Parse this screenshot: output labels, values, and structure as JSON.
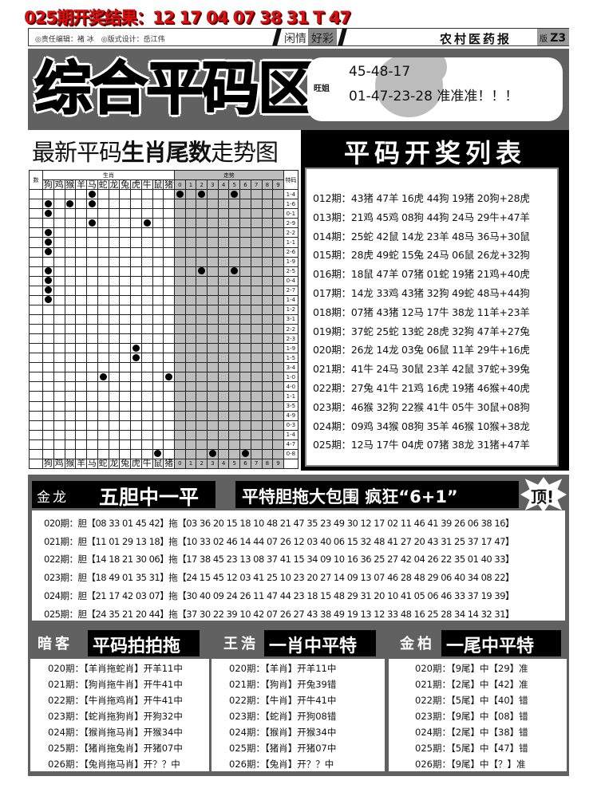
{
  "banner": "025期开奖结果：12 17 04 07 38 31 T 47",
  "header": {
    "credits": "◎责任编辑：褚 冰　◎版式设计：岳江伟",
    "column_a": "闲情",
    "column_b": "好彩",
    "paper": "农村医药报",
    "edition_label": "版",
    "edition": "Z3"
  },
  "top": {
    "title": "综合平码区",
    "tip_author": "旺姐",
    "tip_line1": "45-48-17",
    "tip_line2": "01-47-23-28 准准准！！！"
  },
  "trend": {
    "title_a": "最新平码",
    "title_b": "生肖尾数",
    "title_c": "走势图",
    "count_header": "数",
    "zodiac_header": "生肖",
    "tail_header": "走势",
    "special_header": "特码",
    "zodiacs": [
      "狗",
      "鸡",
      "猴",
      "羊",
      "马",
      "蛇",
      "龙",
      "兔",
      "虎",
      "牛",
      "鼠",
      "猪"
    ],
    "tails": [
      "0",
      "1",
      "2",
      "3",
      "4",
      "5",
      "6",
      "7",
      "8",
      "9"
    ],
    "rows": [
      {
        "z": [
          "马"
        ],
        "t": [
          "0",
          "2",
          "5"
        ],
        "s": "1-4"
      },
      {
        "z": [
          "狗",
          "猴",
          "马"
        ],
        "t": [],
        "s": "1-6"
      },
      {
        "z": [
          "狗"
        ],
        "t": [],
        "s": "0-1"
      },
      {
        "z": [
          "马",
          "牛"
        ],
        "t": [],
        "s": "2-9"
      },
      {
        "z": [
          "狗"
        ],
        "t": [],
        "s": "2-2"
      },
      {
        "z": [
          "狗"
        ],
        "t": [],
        "s": "1-1"
      },
      {
        "z": [
          "狗"
        ],
        "t": [],
        "s": "2-6"
      },
      {
        "z": [],
        "t": [],
        "s": "1-9"
      },
      {
        "z": [
          "狗"
        ],
        "t": [
          "2",
          "5"
        ],
        "s": "2-5"
      },
      {
        "z": [
          "狗"
        ],
        "t": [],
        "s": "0-4"
      },
      {
        "z": [
          "狗"
        ],
        "t": [],
        "s": "2-7"
      },
      {
        "z": [
          "狗"
        ],
        "t": [],
        "s": "1-4"
      },
      {
        "z": [],
        "t": [],
        "s": "1-2"
      },
      {
        "z": [],
        "t": [],
        "s": "3-1"
      },
      {
        "z": [],
        "t": [],
        "s": "2-2"
      },
      {
        "z": [],
        "t": [],
        "s": "2-3"
      },
      {
        "z": [
          "虎"
        ],
        "t": [],
        "s": "1-9"
      },
      {
        "z": [
          "虎"
        ],
        "t": [],
        "s": "1-5"
      },
      {
        "z": [],
        "t": [],
        "s": "3-4"
      },
      {
        "z": [
          "蛇",
          "猪"
        ],
        "t": [],
        "s": "1-0"
      },
      {
        "z": [],
        "t": [],
        "s": "4-0"
      },
      {
        "z": [],
        "t": [],
        "s": "1-1"
      },
      {
        "z": [],
        "t": [],
        "s": "3-5"
      },
      {
        "z": [],
        "t": [],
        "s": "4-9"
      },
      {
        "z": [],
        "t": [],
        "s": "0-3"
      },
      {
        "z": [],
        "t": [],
        "s": "1-4"
      },
      {
        "z": [],
        "t": [],
        "s": "4-7"
      },
      {
        "z": [
          "鼠"
        ],
        "t": [
          "3",
          "6"
        ],
        "s": "0-8"
      }
    ]
  },
  "draw_list": {
    "title": "平码开奖列表",
    "rows": [
      "012期：43猪 47羊 16虎 44狗 19猪 20狗+28虎",
      "013期：21鸡 45鸡 08狗 44狗 24马 29牛+47羊",
      "014期：25蛇 42鼠 14龙 23羊 48马 36马+30鼠",
      "015期：28虎 49蛇 15兔 24马 06鼠 26龙+32狗",
      "016期：18鼠 47羊 07猪 01蛇 19猪 21鸡+40虎",
      "017期：14龙 33鸡 43猪 32狗 49蛇 48马+44狗",
      "018期：07猪 43猪 12马 17牛 38龙 11羊+23羊",
      "019期：37蛇 25蛇 13蛇 28虎 32狗 47羊+27兔",
      "020期：26龙 14龙 03兔 06鼠 11羊 29牛+16虎",
      "021期：41牛 24马 30鼠 23羊 42鼠 37蛇+39兔",
      "022期：27兔 41牛 21鸡 16虎 19猪 46猴+40虎",
      "023期：46猴 32狗 22猴 41牛 05牛 30鼠+08狗",
      "024期：09鸡 34猴 08狗 35羊 46猴 10猴+38龙",
      "025期：12马 17牛 04虎 07猪 38龙 31猪+47羊"
    ]
  },
  "dragon": {
    "author": "金龙",
    "title": "五胆中一平",
    "slogan": "平特胆拖大包围 疯狂“6+1”",
    "badge": "顶!",
    "rows": [
      "020期：胆【08 33 01 45 42】拖【03 36 20 15 18 10 48 21 47 35 23 49 30 12 17 02 11 46 41 39 26 06 38 16】",
      "021期：胆【11 01 29 13 18】拖【10 33 02 46 14 44 07 26 12 03 40 06 15 32 48 41 27 20 43 31 25 37 17 47】",
      "022期：胆【14 18 21 30 06】拖【17 38 45 23 13 08 37 41 15 34 09 10 16 36 25 27 42 04 26 22 35 01 40 33】",
      "023期：胆【18 49 01 35 31】拖【24 15 45 12 03 41 25 10 23 20 27 14 09 13 07 46 28 48 29 06 40 34 08 22】",
      "024期：胆【21 17 42 03 07】拖【30 40 09 24 26 11 47 44 23 18 15 48 29 31 20 10 41 05 06 46 33 37 19 39】",
      "025期：胆【24 35 21 20 44】拖【37 30 22 39 10 42 07 26 27 43 38 49 19 13 12 33 48 16 25 28 34 14 32 31】"
    ]
  },
  "panels": [
    {
      "author": "暗客",
      "title": "平码拍拍拖",
      "rows": [
        "020期：【羊肖拖蛇肖】开羊11中",
        "021期：【狗肖拖牛肖】开牛41中",
        "022期：【牛肖拖鸡肖】开牛41中",
        "023期：【蛇肖拖狗肖】开狗32中",
        "024期：【猴肖拖马肖】开猴34中",
        "025期：【猪肖拖兔肖】开猪07中",
        "026期：【兔肖拖马肖】开？？中"
      ]
    },
    {
      "author": "王浩",
      "title": "一肖中平特",
      "rows": [
        "020期：【羊肖】开羊11中",
        "021期：【狗肖】开兔39错",
        "022期：【牛肖】开牛41中",
        "023期：【蛇肖】开狗08错",
        "024期：【猴肖】开猴34中",
        "025期：【猪肖】开猪07中",
        "026期：【兔肖】开？？中"
      ]
    },
    {
      "author": "金柏",
      "title": "一尾中平特",
      "rows": [
        "020期：【9尾】中【29】准",
        "021期：【2尾】中【42】准",
        "022期：【5尾】中【40】错",
        "023期：【9尾】中【08】错",
        "024期：【2尾】中【38】错",
        "025期：【5尾】中【47】错",
        "026期：【9尾】中【？】准"
      ]
    }
  ],
  "colors": {
    "banner": "#e01010",
    "panel_bg": "#616161",
    "trend_shade": "#bdbdbd"
  }
}
